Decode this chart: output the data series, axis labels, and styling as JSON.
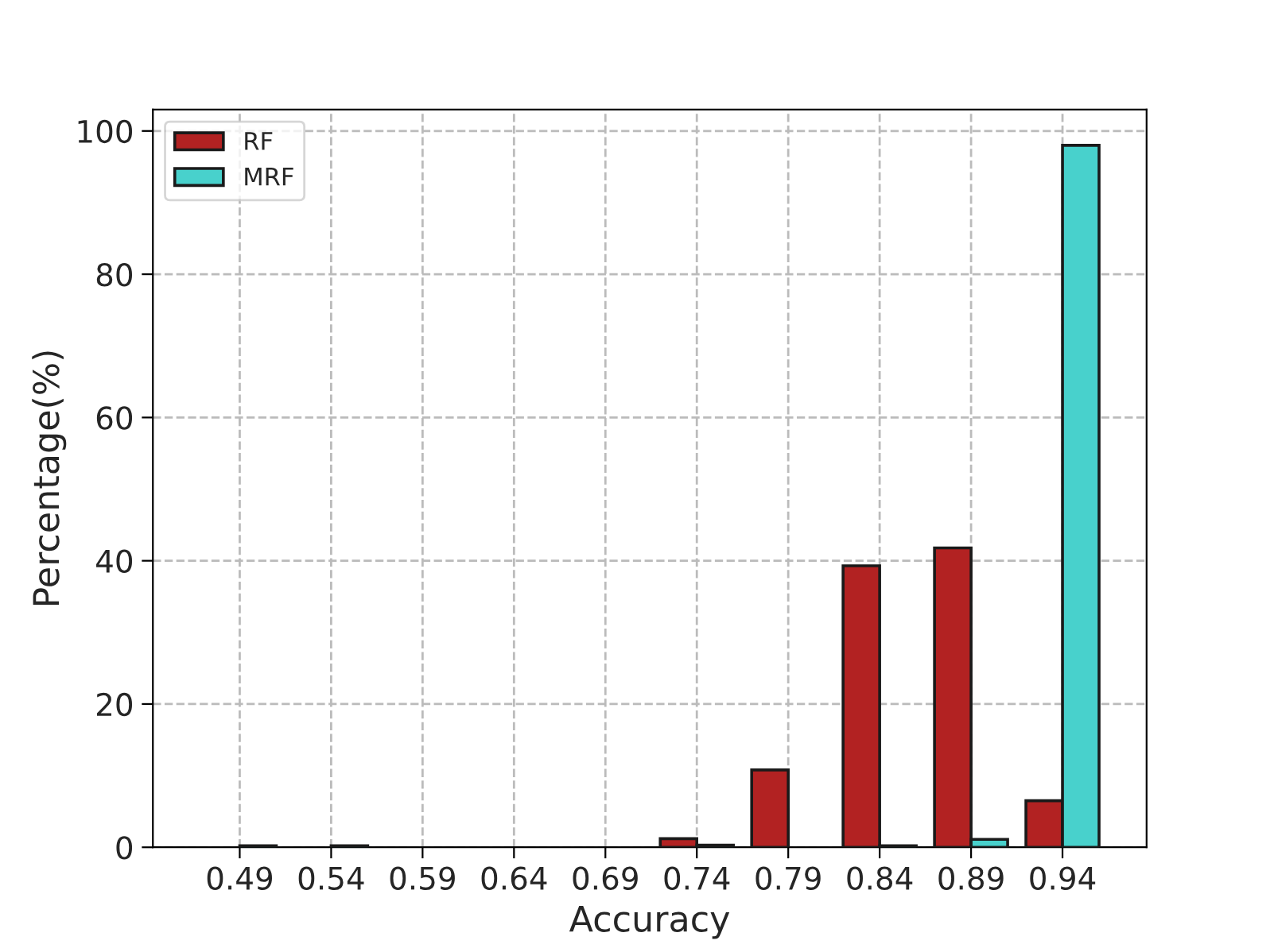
{
  "chart_data": {
    "type": "bar",
    "xlabel": "Accuracy",
    "ylabel": "Percentage(%)",
    "categories": [
      "0.49",
      "0.54",
      "0.59",
      "0.64",
      "0.69",
      "0.74",
      "0.79",
      "0.84",
      "0.89",
      "0.94"
    ],
    "series": [
      {
        "name": "RF",
        "color": "#b22222",
        "values": [
          null,
          null,
          null,
          null,
          null,
          1.2,
          10.8,
          39.3,
          41.8,
          6.5
        ]
      },
      {
        "name": "MRF",
        "color": "#48d1cc",
        "values": [
          0.2,
          0.2,
          null,
          null,
          null,
          0.3,
          null,
          0.2,
          1.1,
          98
        ]
      }
    ],
    "ylim": [
      0,
      103
    ],
    "yticks": [
      0,
      20,
      40,
      60,
      80,
      100
    ],
    "grid": true,
    "legend": "top left"
  }
}
